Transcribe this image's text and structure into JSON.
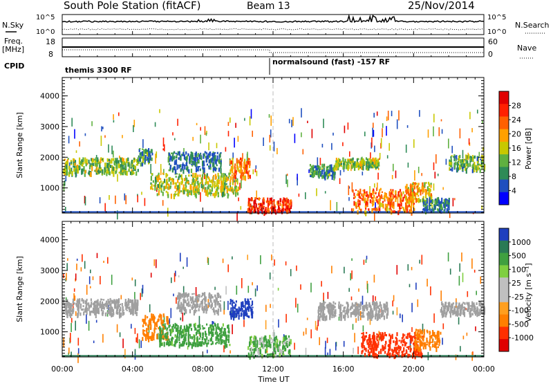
{
  "header": {
    "station": "South Pole Station (fitACF)",
    "beam": "Beam 13",
    "date": "25/Nov/2014"
  },
  "strip_top": {
    "left_label": "N.Sky",
    "left_ticks": [
      "10^5",
      "10^0"
    ],
    "right_label": "N.Search",
    "right_ticks": [
      "10^5",
      "10^0"
    ]
  },
  "strip_freq": {
    "left_label_1": "Freq.",
    "left_label_2": "[MHz]",
    "left_ticks": [
      "18",
      "8"
    ],
    "right_label": "Nave",
    "right_ticks": [
      "60",
      "0"
    ]
  },
  "cpid": {
    "label": "CPID",
    "segments": [
      "themis 3300 RF",
      "normalsound (fast) -157 RF"
    ]
  },
  "colors": {
    "power_scale": [
      "#0000ff",
      "#1f4fbf",
      "#2e8b57",
      "#5fb040",
      "#c8c800",
      "#ffa000",
      "#ff6000",
      "#ff2000",
      "#e00000"
    ],
    "velocity_scale": [
      "#1f3fbf",
      "#2a7a55",
      "#3fa040",
      "#7fcf40",
      "#c0c0c0",
      "#c0c0c0",
      "#ff9f1f",
      "#ff7f00",
      "#ff3000",
      "#e00000"
    ],
    "ground_scatter": "#a0a0a0"
  },
  "chart_data": [
    {
      "type": "heatmap",
      "title": "",
      "xlabel": "",
      "ylabel": "Slant Range [km]",
      "xlim": [
        0,
        24
      ],
      "ylim": [
        180,
        4600
      ],
      "yticks": [
        "1000",
        "2000",
        "3000",
        "4000"
      ],
      "colorbar": {
        "label": "Power [dB]",
        "ticks": [
          "4",
          "8",
          "12",
          "16",
          "20",
          "24",
          "28"
        ],
        "range": [
          0,
          30
        ]
      },
      "bands": [
        {
          "t0": 0.0,
          "t1": 4.3,
          "r0": 1500,
          "r1": 2000,
          "level": 12
        },
        {
          "t0": 4.3,
          "t1": 5.1,
          "r0": 1800,
          "r1": 2300,
          "level": 8
        },
        {
          "t0": 5.0,
          "t1": 10.0,
          "r0": 800,
          "r1": 1500,
          "level": 14
        },
        {
          "t0": 6.0,
          "t1": 9.0,
          "r0": 1600,
          "r1": 2200,
          "level": 6
        },
        {
          "t0": 9.5,
          "t1": 10.7,
          "r0": 1400,
          "r1": 2000,
          "level": 20
        },
        {
          "t0": 10.5,
          "t1": 13.0,
          "r0": 250,
          "r1": 700,
          "level": 26
        },
        {
          "t0": 14.0,
          "t1": 15.5,
          "r0": 1400,
          "r1": 1800,
          "level": 8
        },
        {
          "t0": 15.5,
          "t1": 18.0,
          "r0": 1700,
          "r1": 2000,
          "level": 12
        },
        {
          "t0": 16.5,
          "t1": 20.0,
          "r0": 250,
          "r1": 1000,
          "level": 22
        },
        {
          "t0": 19.5,
          "t1": 21.0,
          "r0": 600,
          "r1": 1200,
          "level": 18
        },
        {
          "t0": 20.5,
          "t1": 22.0,
          "r0": 300,
          "r1": 700,
          "level": 6
        },
        {
          "t0": 22.0,
          "t1": 24.0,
          "r0": 1600,
          "r1": 2100,
          "level": 10
        }
      ]
    },
    {
      "type": "heatmap",
      "title": "",
      "xlabel": "Time UT",
      "ylabel": "Slant Range [km]",
      "xlim": [
        0,
        24
      ],
      "ylim": [
        180,
        4600
      ],
      "xticks": [
        "00:00",
        "04:00",
        "08:00",
        "12:00",
        "16:00",
        "20:00",
        "00:00"
      ],
      "yticks": [
        "1000",
        "2000",
        "3000",
        "4000"
      ],
      "colorbar": {
        "label": "Velocity [m s⁻¹]",
        "ticks": [
          "1000",
          "500",
          "100",
          "25",
          "-25",
          "-100",
          "-500",
          "-1000"
        ]
      },
      "bands": [
        {
          "t0": 0.0,
          "t1": 4.3,
          "r0": 1600,
          "r1": 2100,
          "level": 0,
          "ground": true
        },
        {
          "t0": 4.5,
          "t1": 6.0,
          "r0": 800,
          "r1": 1600,
          "level": -300
        },
        {
          "t0": 5.5,
          "t1": 9.5,
          "r0": 600,
          "r1": 1300,
          "level": 150
        },
        {
          "t0": 6.5,
          "t1": 9.0,
          "r0": 1700,
          "r1": 2300,
          "level": 0,
          "ground": true
        },
        {
          "t0": 9.5,
          "t1": 10.8,
          "r0": 1500,
          "r1": 2100,
          "level": 900
        },
        {
          "t0": 10.5,
          "t1": 13.0,
          "r0": 250,
          "r1": 900,
          "level": 80
        },
        {
          "t0": 14.5,
          "t1": 18.5,
          "r0": 1500,
          "r1": 2000,
          "level": 0,
          "ground": true
        },
        {
          "t0": 17.0,
          "t1": 20.5,
          "r0": 250,
          "r1": 1000,
          "level": -600
        },
        {
          "t0": 20.0,
          "t1": 21.5,
          "r0": 500,
          "r1": 1100,
          "level": -300
        },
        {
          "t0": 21.5,
          "t1": 24.0,
          "r0": 1600,
          "r1": 2000,
          "level": 0,
          "ground": true
        }
      ]
    }
  ],
  "axis_label": "Time UT"
}
